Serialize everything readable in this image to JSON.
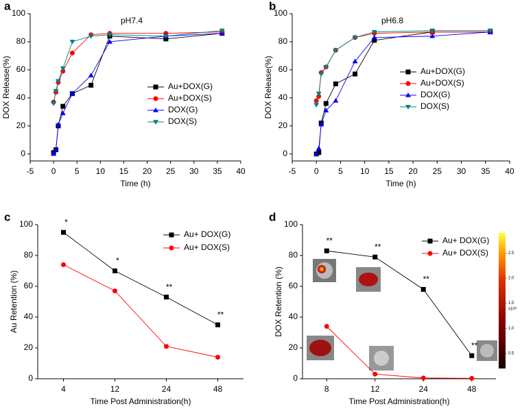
{
  "chart_data": [
    {
      "type": "line",
      "panel_label": "a",
      "title": "pH7.4",
      "x_label": "Time (h)",
      "y_label": "DOX Release(%)",
      "x": [
        0,
        0.5,
        1,
        2,
        4,
        8,
        12,
        24,
        36
      ],
      "xlim": [
        -5,
        40
      ],
      "xticks": [
        -5,
        0,
        5,
        10,
        15,
        20,
        25,
        30,
        35,
        40
      ],
      "ylim": [
        -5,
        100
      ],
      "yticks": [
        0,
        20,
        40,
        60,
        80,
        100
      ],
      "series": [
        {
          "name": "Au+DOX(G)",
          "color": "#000000",
          "marker": "square",
          "values": [
            1,
            3,
            20,
            34,
            43,
            49,
            84,
            82,
            86
          ]
        },
        {
          "name": "Au+DOX(S)",
          "color": "#ff0000",
          "marker": "circle",
          "values": [
            37,
            44,
            51,
            59,
            72,
            85,
            86,
            86,
            87
          ]
        },
        {
          "name": "DOX(G)",
          "color": "#0000ff",
          "marker": "triangle-up",
          "values": [
            0,
            3,
            21,
            29,
            43,
            56,
            80,
            84,
            86
          ]
        },
        {
          "name": "DOX(S)",
          "color": "#008080",
          "marker": "triangle-down",
          "values": [
            36,
            45,
            52,
            61,
            80,
            84,
            85,
            84,
            88
          ]
        }
      ]
    },
    {
      "type": "line",
      "panel_label": "b",
      "title": "pH6.8",
      "x_label": "Time (h)",
      "y_label": "DOX Release(%)",
      "x": [
        0,
        0.5,
        1,
        2,
        4,
        8,
        12,
        24,
        36
      ],
      "xlim": [
        -5,
        40
      ],
      "xticks": [
        -5,
        0,
        5,
        10,
        15,
        20,
        25,
        30,
        35,
        40
      ],
      "ylim": [
        -5,
        100
      ],
      "yticks": [
        0,
        20,
        40,
        60,
        80,
        100
      ],
      "series": [
        {
          "name": "Au+DOX(G)",
          "color": "#000000",
          "marker": "square",
          "values": [
            0,
            1,
            22,
            36,
            50,
            57,
            81,
            87,
            87
          ]
        },
        {
          "name": "Au+DOX(S)",
          "color": "#ff0000",
          "marker": "circle",
          "values": [
            38,
            41,
            58,
            62,
            74,
            83,
            86,
            87,
            87
          ]
        },
        {
          "name": "DOX(G)",
          "color": "#0000ff",
          "marker": "triangle-up",
          "values": [
            0,
            4,
            21,
            31,
            38,
            66,
            83,
            84,
            87
          ]
        },
        {
          "name": "DOX(S)",
          "color": "#008080",
          "marker": "triangle-down",
          "values": [
            35,
            43,
            57,
            62,
            74,
            83,
            87,
            88,
            88
          ]
        }
      ]
    },
    {
      "type": "line",
      "panel_label": "c",
      "x_label": "Time Post Administration(h)",
      "y_label": "Au Retention (%)",
      "categories": [
        "4",
        "12",
        "24",
        "48"
      ],
      "ylim": [
        0,
        100
      ],
      "yticks": [
        0,
        20,
        40,
        60,
        80,
        100
      ],
      "annotations": [
        "*",
        "*",
        "**",
        "**"
      ],
      "series": [
        {
          "name": "Au+ DOX(G)",
          "color": "#000000",
          "marker": "square",
          "values": [
            95,
            70,
            53,
            35
          ]
        },
        {
          "name": "Au+ DOX(S)",
          "color": "#ff0000",
          "marker": "circle",
          "values": [
            74,
            57,
            21,
            14
          ]
        }
      ]
    },
    {
      "type": "line",
      "panel_label": "d",
      "x_label": "Time Post Administration(h)",
      "y_label": "DOX Retention (%)",
      "categories": [
        "8",
        "12",
        "24",
        "48"
      ],
      "ylim": [
        0,
        100
      ],
      "yticks": [
        0,
        20,
        40,
        60,
        80,
        100
      ],
      "annotations": [
        "**",
        "**",
        "**",
        "**"
      ],
      "series": [
        {
          "name": "Au+ DOX(G)",
          "color": "#000000",
          "marker": "square",
          "values": [
            83,
            79,
            58,
            15
          ]
        },
        {
          "name": "Au+ DOX(S)",
          "color": "#ff0000",
          "marker": "circle",
          "values": [
            34,
            3,
            0.5,
            0.3
          ]
        }
      ],
      "colorbar_label": "x10⁸",
      "colorbar_lim": [
        0.2,
        2.9
      ],
      "colorbar_ticks": [
        {
          "value": 0.5,
          "label": "0.5"
        },
        {
          "value": 1,
          "label": "1.0"
        },
        {
          "value": 1.5,
          "label": "1.5"
        },
        {
          "value": 2,
          "label": "2.0"
        },
        {
          "value": 2.5,
          "label": "2.5"
        }
      ]
    }
  ]
}
